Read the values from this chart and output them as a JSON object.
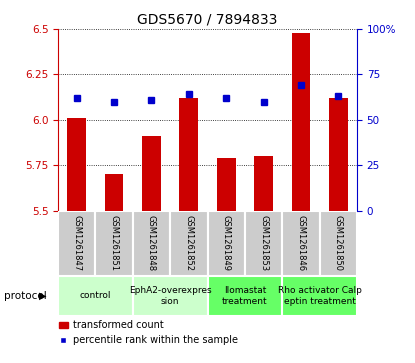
{
  "title": "GDS5670 / 7894833",
  "samples": [
    "GSM1261847",
    "GSM1261851",
    "GSM1261848",
    "GSM1261852",
    "GSM1261849",
    "GSM1261853",
    "GSM1261846",
    "GSM1261850"
  ],
  "red_values": [
    6.01,
    5.7,
    5.91,
    6.12,
    5.79,
    5.8,
    6.48,
    6.12
  ],
  "blue_values": [
    62,
    60,
    61,
    64,
    62,
    60,
    69,
    63
  ],
  "ylim_left": [
    5.5,
    6.5
  ],
  "ylim_right": [
    0,
    100
  ],
  "yticks_left": [
    5.5,
    5.75,
    6.0,
    6.25,
    6.5
  ],
  "yticks_right": [
    0,
    25,
    50,
    75,
    100
  ],
  "protocols": [
    {
      "label": "control",
      "indices": [
        0,
        1
      ],
      "color": "#ccffcc"
    },
    {
      "label": "EphA2-overexpres\nsion",
      "indices": [
        2,
        3
      ],
      "color": "#ccffcc"
    },
    {
      "label": "llomastat\ntreatment",
      "indices": [
        4,
        5
      ],
      "color": "#66ff66"
    },
    {
      "label": "Rho activator Calp\neptin treatment",
      "indices": [
        6,
        7
      ],
      "color": "#66ff66"
    }
  ],
  "bar_color": "#cc0000",
  "dot_color": "#0000cc",
  "bar_width": 0.5,
  "background_color": "#ffffff",
  "tick_label_color_left": "#cc0000",
  "tick_label_color_right": "#0000cc",
  "legend_red_label": "transformed count",
  "legend_blue_label": "percentile rank within the sample",
  "sample_box_color": "#cccccc",
  "sample_box_edge": "#ffffff"
}
